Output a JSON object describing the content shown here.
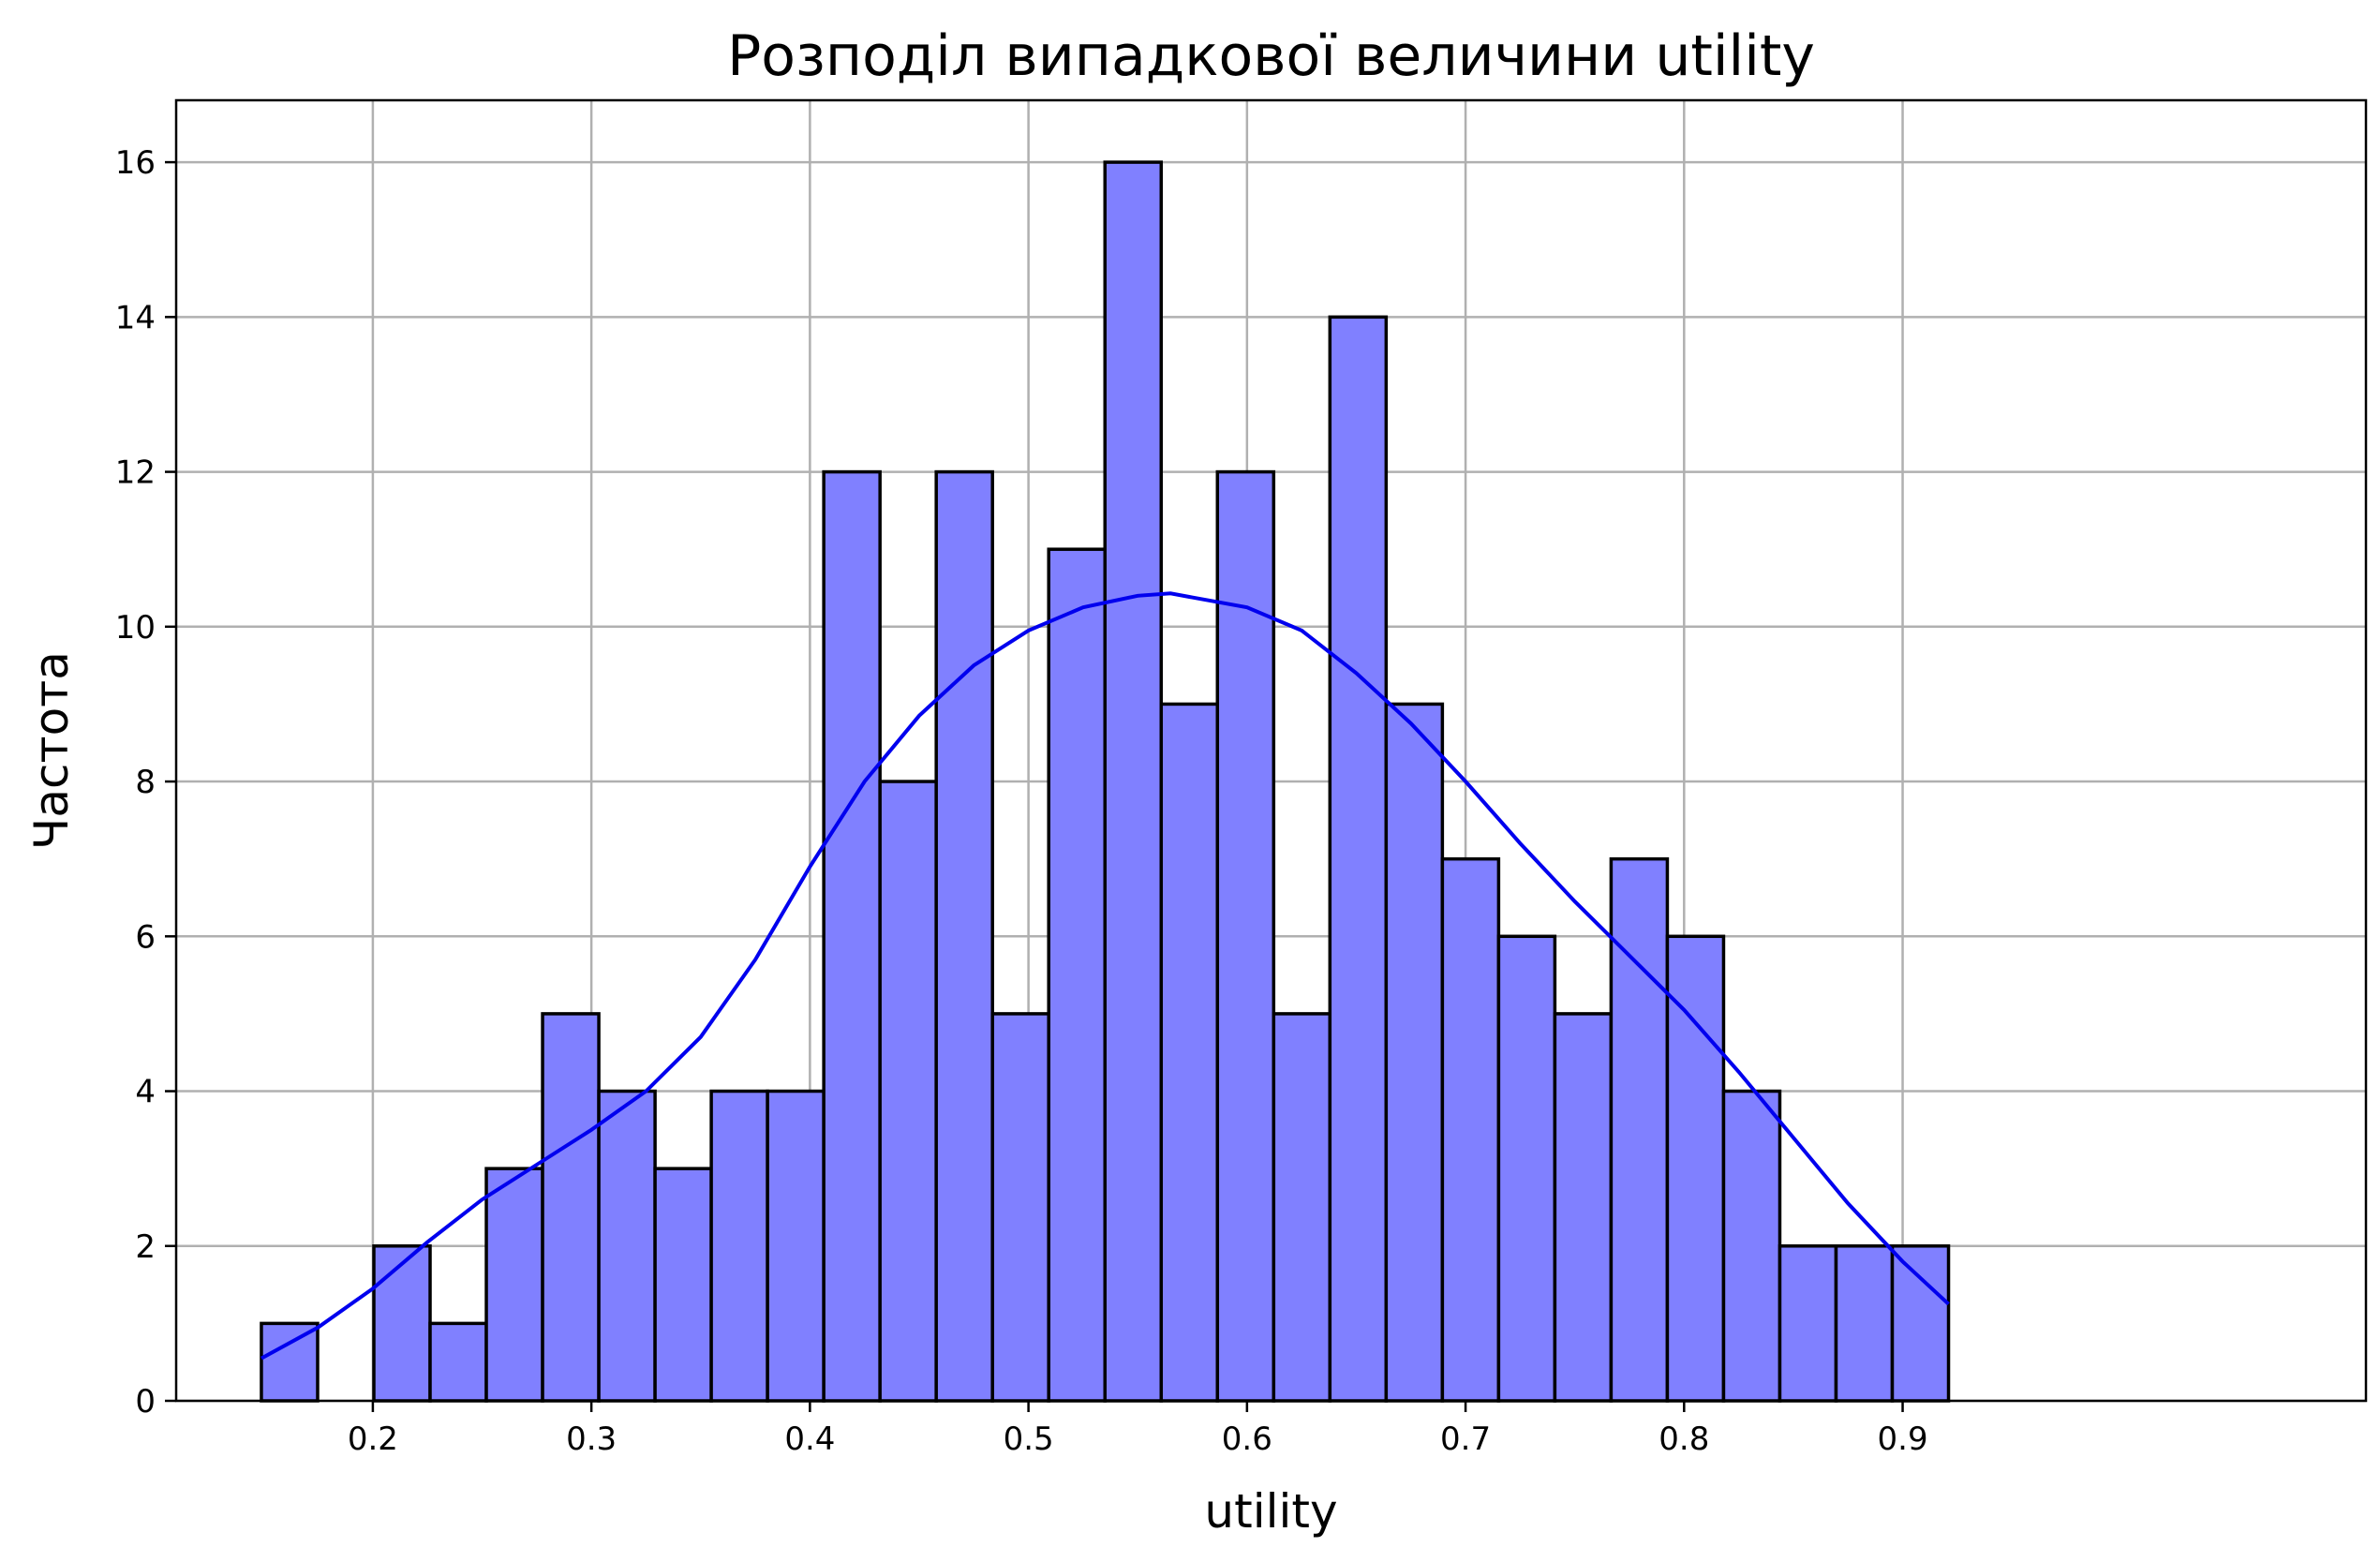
{
  "chart_data": {
    "type": "bar",
    "title": "Розподіл випадкової величини utility",
    "xlabel": "utility",
    "ylabel": "Частота",
    "xlim": [
      0.11,
      1.112
    ],
    "ylim": [
      0,
      16.8
    ],
    "x_ticks": [
      0.2,
      0.3,
      0.4,
      0.5,
      0.6,
      0.7,
      0.8,
      0.9
    ],
    "x_tick_labels": [
      "0.2",
      "0.3",
      "0.4",
      "0.5",
      "0.6",
      "0.7",
      "0.8",
      "0.9"
    ],
    "y_ticks": [
      0,
      2,
      4,
      6,
      8,
      10,
      12,
      14,
      16
    ],
    "y_tick_labels": [
      "0",
      "2",
      "4",
      "6",
      "8",
      "10",
      "12",
      "14",
      "16"
    ],
    "grid": true,
    "bin_start": 0.149,
    "bin_end": 0.921,
    "counts": [
      1,
      0,
      2,
      1,
      3,
      5,
      4,
      3,
      4,
      4,
      12,
      8,
      12,
      5,
      11,
      16,
      9,
      12,
      5,
      14,
      9,
      7,
      6,
      5,
      7,
      6,
      4,
      2,
      2,
      2
    ],
    "kde": {
      "x": [
        0.149,
        0.175,
        0.2,
        0.225,
        0.25,
        0.275,
        0.3,
        0.325,
        0.35,
        0.375,
        0.4,
        0.425,
        0.45,
        0.475,
        0.5,
        0.525,
        0.55,
        0.565,
        0.6,
        0.625,
        0.65,
        0.675,
        0.7,
        0.725,
        0.75,
        0.775,
        0.8,
        0.825,
        0.85,
        0.875,
        0.9,
        0.921
      ],
      "y": [
        0.55,
        0.95,
        1.45,
        2.05,
        2.6,
        3.05,
        3.5,
        4.0,
        4.7,
        5.7,
        6.9,
        8.0,
        8.85,
        9.5,
        9.95,
        10.25,
        10.4,
        10.43,
        10.25,
        9.95,
        9.4,
        8.75,
        8.0,
        7.2,
        6.45,
        5.75,
        5.05,
        4.25,
        3.4,
        2.55,
        1.8,
        1.25
      ]
    },
    "bar_color": "#8080ff",
    "bar_edge_color": "#000000",
    "kde_color": "#0000ee"
  }
}
